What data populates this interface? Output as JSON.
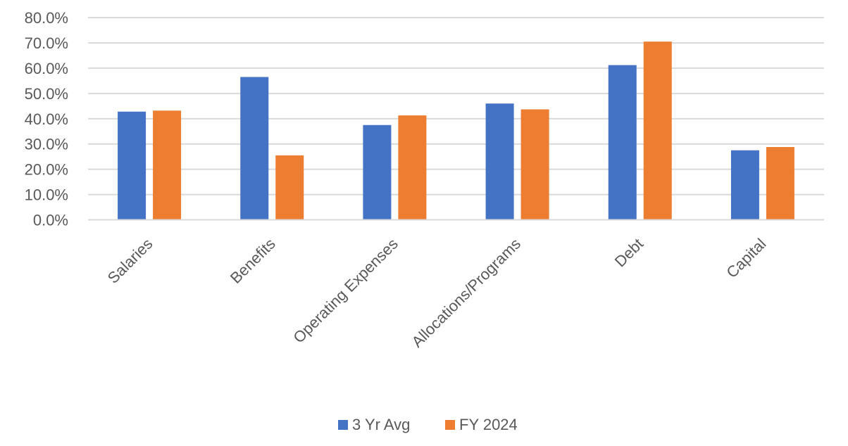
{
  "chart_data": {
    "type": "bar",
    "categories": [
      "Salaries",
      "Benefits",
      "Operating Expenses",
      "Allocations/Programs",
      "Debt",
      "Capital"
    ],
    "series": [
      {
        "name": "3 Yr Avg",
        "color": "#4472c4",
        "values": [
          42.8,
          56.5,
          37.5,
          46.0,
          61.2,
          27.5
        ]
      },
      {
        "name": "FY 2024",
        "color": "#ed7d31",
        "values": [
          43.2,
          25.5,
          41.3,
          43.7,
          70.5,
          28.8
        ]
      }
    ],
    "ylim": [
      0,
      80
    ],
    "yticks": [
      "0.0%",
      "10.0%",
      "20.0%",
      "30.0%",
      "40.0%",
      "50.0%",
      "60.0%",
      "70.0%",
      "80.0%"
    ],
    "grid": true,
    "legend_position": "bottom"
  }
}
